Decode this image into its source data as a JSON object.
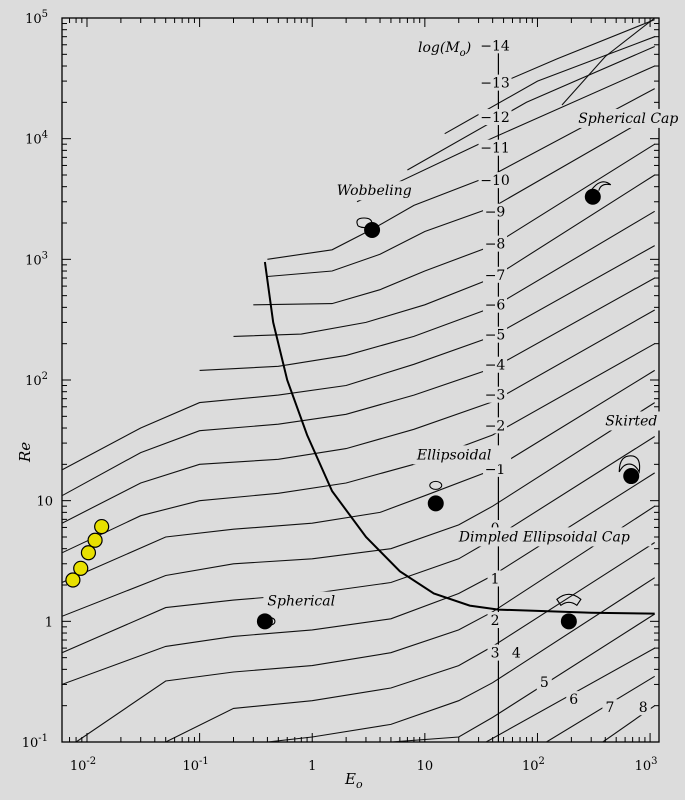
{
  "chart_data": {
    "type": "line",
    "xlabel": "E",
    "xlabel_sub": "o",
    "ylabel": "Re",
    "xscale": "log",
    "yscale": "log",
    "xlim": [
      0.006,
      1200
    ],
    "ylim": [
      0.1,
      100000
    ],
    "x_ticks": [
      {
        "base": "10",
        "exp": "-2",
        "value": 0.01
      },
      {
        "base": "10",
        "exp": "-1",
        "value": 0.1
      },
      {
        "base": "1",
        "exp": "",
        "value": 1
      },
      {
        "base": "10",
        "exp": "",
        "value": 10
      },
      {
        "base": "10",
        "exp": "2",
        "value": 100
      },
      {
        "base": "10",
        "exp": "3",
        "value": 1000
      }
    ],
    "y_ticks": [
      {
        "base": "10",
        "exp": "-1",
        "value": 0.1
      },
      {
        "base": "1",
        "exp": "",
        "value": 1
      },
      {
        "base": "10",
        "exp": "",
        "value": 10
      },
      {
        "base": "10",
        "exp": "2",
        "value": 100
      },
      {
        "base": "10",
        "exp": "3",
        "value": 1000
      },
      {
        "base": "10",
        "exp": "4",
        "value": 10000
      },
      {
        "base": "10",
        "exp": "5",
        "value": 100000
      }
    ],
    "morton_title_main": "log(M",
    "morton_title_sub": "o",
    "morton_title_end": ")",
    "morton_labels": [
      {
        "text": "−14",
        "x": 42,
        "y": 55000
      },
      {
        "text": "−13",
        "x": 42,
        "y": 27000
      },
      {
        "text": "−12",
        "x": 42,
        "y": 14000
      },
      {
        "text": "−11",
        "x": 42,
        "y": 7800
      },
      {
        "text": "−10",
        "x": 42,
        "y": 4200
      },
      {
        "text": "−9",
        "x": 42,
        "y": 2300
      },
      {
        "text": "−8",
        "x": 42,
        "y": 1250
      },
      {
        "text": "−7",
        "x": 42,
        "y": 690
      },
      {
        "text": "−6",
        "x": 42,
        "y": 390
      },
      {
        "text": "−5",
        "x": 42,
        "y": 220
      },
      {
        "text": "−4",
        "x": 42,
        "y": 124
      },
      {
        "text": "−3",
        "x": 42,
        "y": 70
      },
      {
        "text": "−2",
        "x": 42,
        "y": 39
      },
      {
        "text": "−1",
        "x": 42,
        "y": 17
      },
      {
        "text": "0",
        "x": 42,
        "y": 5.5
      },
      {
        "text": "1",
        "x": 42,
        "y": 2.1
      },
      {
        "text": "2",
        "x": 42,
        "y": 0.95
      },
      {
        "text": "3",
        "x": 42,
        "y": 0.51
      },
      {
        "text": "4",
        "x": 65,
        "y": 0.51
      },
      {
        "text": "5",
        "x": 115,
        "y": 0.29
      },
      {
        "text": "6",
        "x": 210,
        "y": 0.21
      },
      {
        "text": "7",
        "x": 440,
        "y": 0.18
      },
      {
        "text": "8",
        "x": 870,
        "y": 0.18
      }
    ],
    "regions": [
      {
        "text": "Wobbeling",
        "x": 1.65,
        "y": 3400
      },
      {
        "text": "Spherical Cap",
        "x": 230,
        "y": 13500
      },
      {
        "text": "Skirted",
        "x": 400,
        "y": 42
      },
      {
        "text": "Ellipsoidal",
        "x": 8.5,
        "y": 22
      },
      {
        "text": "Dimpled Ellipsoidal Cap",
        "x": 20,
        "y": 4.6
      },
      {
        "text": "Spherical",
        "x": 0.4,
        "y": 1.35
      }
    ],
    "markers": [
      {
        "x": 3.4,
        "y": 1750,
        "shape": "wobble"
      },
      {
        "x": 310,
        "y": 3300,
        "shape": "cap"
      },
      {
        "x": 12.5,
        "y": 9.5,
        "shape": "ellipse"
      },
      {
        "x": 680,
        "y": 16,
        "shape": "skirt"
      },
      {
        "x": 190,
        "y": 1.0,
        "shape": "dimple"
      },
      {
        "x": 0.38,
        "y": 1.0,
        "shape": "sphere"
      }
    ],
    "yellow_points": [
      {
        "x": 0.0075,
        "y": 2.2
      },
      {
        "x": 0.0088,
        "y": 2.75
      },
      {
        "x": 0.0103,
        "y": 3.7
      },
      {
        "x": 0.0118,
        "y": 4.7
      },
      {
        "x": 0.0135,
        "y": 6.1
      }
    ],
    "morton_lines": [
      {
        "value": -14,
        "points": [
          [
            165,
            19000
          ],
          [
            400,
            48000
          ],
          [
            1100,
            110000
          ]
        ]
      },
      {
        "value": -13,
        "points": [
          [
            40,
            27000
          ],
          [
            150,
            46000
          ],
          [
            1100,
            97000
          ]
        ]
      },
      {
        "value": -12,
        "points": [
          [
            15,
            11000
          ],
          [
            100,
            30000
          ],
          [
            1100,
            70000
          ]
        ]
      },
      {
        "value": -11,
        "points": [
          [
            7,
            5500
          ],
          [
            80,
            20000
          ],
          [
            1100,
            58000
          ]
        ]
      },
      {
        "value": -10,
        "points": [
          [
            2.5,
            3000
          ],
          [
            30,
            9000
          ],
          [
            1100,
            40000
          ]
        ]
      },
      {
        "value": -9,
        "points": [
          [
            0.4,
            1000
          ],
          [
            1.5,
            1200
          ],
          [
            3.5,
            1800
          ],
          [
            8,
            2800
          ],
          [
            40,
            5000
          ],
          [
            1100,
            26000
          ]
        ]
      },
      {
        "value": -8,
        "points": [
          [
            0.4,
            720
          ],
          [
            1.5,
            800
          ],
          [
            4,
            1100
          ],
          [
            10,
            1700
          ],
          [
            40,
            2700
          ],
          [
            1100,
            16000
          ]
        ]
      },
      {
        "value": -7,
        "points": [
          [
            0.3,
            420
          ],
          [
            1.5,
            430
          ],
          [
            4,
            560
          ],
          [
            10,
            800
          ],
          [
            40,
            1300
          ],
          [
            1100,
            9000
          ]
        ]
      },
      {
        "value": -6,
        "points": [
          [
            0.2,
            230
          ],
          [
            0.8,
            240
          ],
          [
            3,
            300
          ],
          [
            10,
            420
          ],
          [
            40,
            700
          ],
          [
            1100,
            5000
          ]
        ]
      },
      {
        "value": -5,
        "points": [
          [
            0.1,
            120
          ],
          [
            0.5,
            130
          ],
          [
            2,
            160
          ],
          [
            8,
            230
          ],
          [
            40,
            400
          ],
          [
            1100,
            2500
          ]
        ]
      },
      {
        "value": -4,
        "points": [
          [
            0.006,
            18
          ],
          [
            0.03,
            40
          ],
          [
            0.1,
            65
          ],
          [
            0.5,
            75
          ],
          [
            2,
            90
          ],
          [
            8,
            135
          ],
          [
            40,
            230
          ],
          [
            1100,
            1300
          ]
        ]
      },
      {
        "value": -3,
        "points": [
          [
            0.006,
            11
          ],
          [
            0.03,
            25
          ],
          [
            0.1,
            38
          ],
          [
            0.5,
            43
          ],
          [
            2,
            52
          ],
          [
            8,
            75
          ],
          [
            40,
            125
          ],
          [
            1100,
            700
          ]
        ]
      },
      {
        "value": -2,
        "points": [
          [
            0.006,
            6.5
          ],
          [
            0.03,
            14
          ],
          [
            0.1,
            20
          ],
          [
            0.5,
            22
          ],
          [
            2,
            27
          ],
          [
            8,
            39
          ],
          [
            40,
            66
          ],
          [
            1100,
            380
          ]
        ]
      },
      {
        "value": -1,
        "points": [
          [
            0.006,
            3.7
          ],
          [
            0.03,
            7.5
          ],
          [
            0.1,
            10
          ],
          [
            0.5,
            11.5
          ],
          [
            2,
            14
          ],
          [
            8,
            20
          ],
          [
            40,
            35
          ],
          [
            1100,
            200
          ]
        ]
      },
      {
        "value": 0,
        "points": [
          [
            0.006,
            2.1
          ],
          [
            0.05,
            5
          ],
          [
            0.2,
            5.8
          ],
          [
            1,
            6.5
          ],
          [
            4,
            8
          ],
          [
            10,
            11
          ],
          [
            40,
            18
          ],
          [
            1100,
            120
          ]
        ]
      },
      {
        "value": 1,
        "points": [
          [
            0.006,
            1.1
          ],
          [
            0.05,
            2.4
          ],
          [
            0.2,
            3
          ],
          [
            1,
            3.3
          ],
          [
            5,
            4
          ],
          [
            20,
            6.3
          ],
          [
            40,
            9
          ],
          [
            1100,
            65
          ]
        ]
      },
      {
        "value": 2,
        "points": [
          [
            0.006,
            0.55
          ],
          [
            0.05,
            1.3
          ],
          [
            0.2,
            1.5
          ],
          [
            1,
            1.7
          ],
          [
            5,
            2.1
          ],
          [
            20,
            3.3
          ],
          [
            40,
            4.8
          ],
          [
            1100,
            34
          ]
        ]
      },
      {
        "value": 3,
        "points": [
          [
            0.006,
            0.3
          ],
          [
            0.05,
            0.62
          ],
          [
            0.2,
            0.75
          ],
          [
            1,
            0.85
          ],
          [
            5,
            1.05
          ],
          [
            20,
            1.7
          ],
          [
            40,
            2.4
          ],
          [
            1100,
            17
          ]
        ]
      },
      {
        "value": 4,
        "points": [
          [
            0.008,
            0.1
          ],
          [
            0.05,
            0.32
          ],
          [
            0.2,
            0.38
          ],
          [
            1,
            0.43
          ],
          [
            5,
            0.55
          ],
          [
            20,
            0.85
          ],
          [
            40,
            1.2
          ],
          [
            1100,
            9
          ]
        ]
      },
      {
        "value": 5,
        "points": [
          [
            0.05,
            0.1
          ],
          [
            0.2,
            0.19
          ],
          [
            1,
            0.22
          ],
          [
            5,
            0.28
          ],
          [
            20,
            0.43
          ],
          [
            40,
            0.62
          ],
          [
            1100,
            4.5
          ]
        ]
      },
      {
        "value": 6,
        "points": [
          [
            0.4,
            0.1
          ],
          [
            1,
            0.11
          ],
          [
            5,
            0.14
          ],
          [
            20,
            0.22
          ],
          [
            40,
            0.31
          ],
          [
            1100,
            2.3
          ]
        ]
      },
      {
        "value": 7,
        "points": [
          [
            5,
            0.1
          ],
          [
            20,
            0.11
          ],
          [
            40,
            0.16
          ],
          [
            1100,
            1.15
          ]
        ]
      },
      {
        "value": 8,
        "points": [
          [
            35,
            0.1
          ],
          [
            1100,
            0.6
          ]
        ]
      },
      {
        "value": 9,
        "points": [
          [
            120,
            0.1
          ],
          [
            1100,
            0.35
          ]
        ]
      },
      {
        "value": 10,
        "points": [
          [
            380,
            0.1
          ],
          [
            1100,
            0.2
          ]
        ]
      }
    ],
    "boundary_lines": [
      {
        "name": "spherical-boundary",
        "points": [
          [
            0.38,
            950
          ],
          [
            0.45,
            300
          ],
          [
            0.6,
            100
          ],
          [
            0.9,
            35
          ],
          [
            1.5,
            12
          ],
          [
            3,
            5
          ],
          [
            6,
            2.6
          ],
          [
            12,
            1.7
          ],
          [
            25,
            1.35
          ],
          [
            45,
            1.25
          ],
          [
            100,
            1.22
          ],
          [
            300,
            1.18
          ],
          [
            1100,
            1.16
          ]
        ]
      },
      {
        "name": "mo-divider",
        "points": [
          [
            45,
            0.1
          ],
          [
            45,
            65000
          ]
        ]
      }
    ]
  }
}
